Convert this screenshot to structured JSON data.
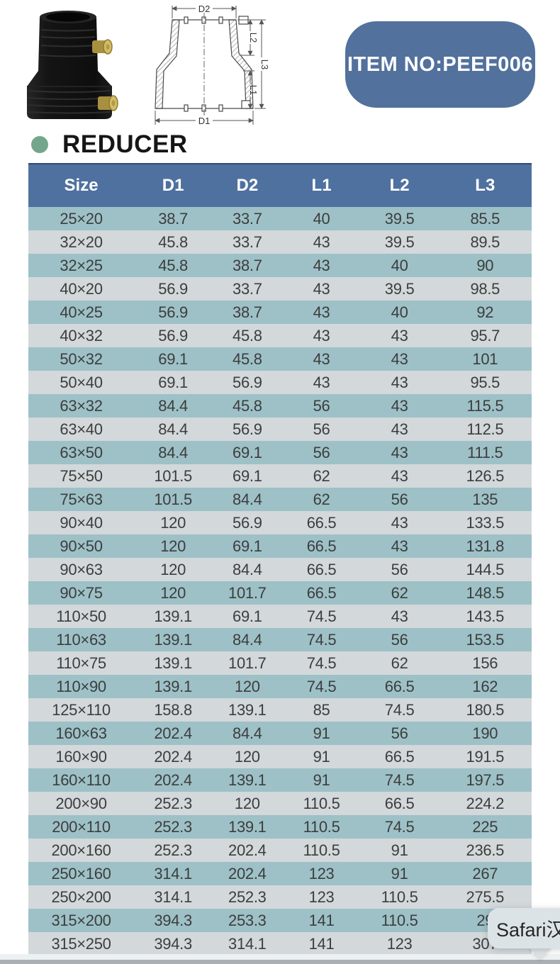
{
  "theme": {
    "page_bg": "#ffffff",
    "header_bg": "#4F719F",
    "row_teal": "#9DC1C7",
    "row_gray": "#D3D8DA",
    "badge_bg": "#52719C",
    "bullet_green": "#74A68C",
    "tooltip_bg": "#DCE3E7"
  },
  "hero": {
    "badge_label": "ITEM NO:PEEF006",
    "drawing_labels": {
      "d1": "D1",
      "d2": "D2",
      "l1": "L1",
      "l2": "L2",
      "l3": "L3"
    }
  },
  "section": {
    "title": "REDUCER"
  },
  "table": {
    "columns": [
      "Size",
      "D1",
      "D2",
      "L1",
      "L2",
      "L3"
    ],
    "rows": [
      [
        "25×20",
        "38.7",
        "33.7",
        "40",
        "39.5",
        "85.5"
      ],
      [
        "32×20",
        "45.8",
        "33.7",
        "43",
        "39.5",
        "89.5"
      ],
      [
        "32×25",
        "45.8",
        "38.7",
        "43",
        "40",
        "90"
      ],
      [
        "40×20",
        "56.9",
        "33.7",
        "43",
        "39.5",
        "98.5"
      ],
      [
        "40×25",
        "56.9",
        "38.7",
        "43",
        "40",
        "92"
      ],
      [
        "40×32",
        "56.9",
        "45.8",
        "43",
        "43",
        "95.7"
      ],
      [
        "50×32",
        "69.1",
        "45.8",
        "43",
        "43",
        "101"
      ],
      [
        "50×40",
        "69.1",
        "56.9",
        "43",
        "43",
        "95.5"
      ],
      [
        "63×32",
        "84.4",
        "45.8",
        "56",
        "43",
        "115.5"
      ],
      [
        "63×40",
        "84.4",
        "56.9",
        "56",
        "43",
        "112.5"
      ],
      [
        "63×50",
        "84.4",
        "69.1",
        "56",
        "43",
        "111.5"
      ],
      [
        "75×50",
        "101.5",
        "69.1",
        "62",
        "43",
        "126.5"
      ],
      [
        "75×63",
        "101.5",
        "84.4",
        "62",
        "56",
        "135"
      ],
      [
        "90×40",
        "120",
        "56.9",
        "66.5",
        "43",
        "133.5"
      ],
      [
        "90×50",
        "120",
        "69.1",
        "66.5",
        "43",
        "131.8"
      ],
      [
        "90×63",
        "120",
        "84.4",
        "66.5",
        "56",
        "144.5"
      ],
      [
        "90×75",
        "120",
        "101.7",
        "66.5",
        "62",
        "148.5"
      ],
      [
        "110×50",
        "139.1",
        "69.1",
        "74.5",
        "43",
        "143.5"
      ],
      [
        "110×63",
        "139.1",
        "84.4",
        "74.5",
        "56",
        "153.5"
      ],
      [
        "110×75",
        "139.1",
        "101.7",
        "74.5",
        "62",
        "156"
      ],
      [
        "110×90",
        "139.1",
        "120",
        "74.5",
        "66.5",
        "162"
      ],
      [
        "125×110",
        "158.8",
        "139.1",
        "85",
        "74.5",
        "180.5"
      ],
      [
        "160×63",
        "202.4",
        "84.4",
        "91",
        "56",
        "190"
      ],
      [
        "160×90",
        "202.4",
        "120",
        "91",
        "66.5",
        "191.5"
      ],
      [
        "160×110",
        "202.4",
        "139.1",
        "91",
        "74.5",
        "197.5"
      ],
      [
        "200×90",
        "252.3",
        "120",
        "110.5",
        "66.5",
        "224.2"
      ],
      [
        "200×110",
        "252.3",
        "139.1",
        "110.5",
        "74.5",
        "225"
      ],
      [
        "200×160",
        "252.3",
        "202.4",
        "110.5",
        "91",
        "236.5"
      ],
      [
        "250×160",
        "314.1",
        "202.4",
        "123",
        "91",
        "267"
      ],
      [
        "250×200",
        "314.1",
        "252.3",
        "123",
        "110.5",
        "275.5"
      ],
      [
        "315×200",
        "394.3",
        "253.3",
        "141",
        "110.5",
        "29"
      ],
      [
        "315×250",
        "394.3",
        "314.1",
        "141",
        "123",
        "307"
      ]
    ]
  },
  "tooltip": {
    "label": "Safari汉"
  }
}
